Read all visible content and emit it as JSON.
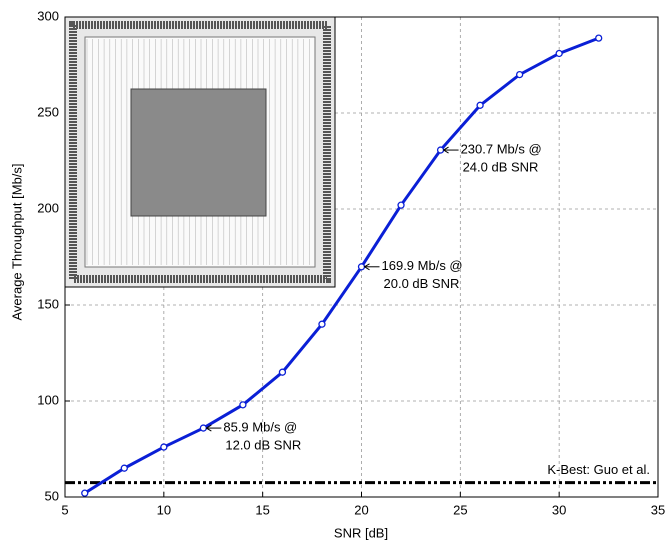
{
  "chart_data": {
    "type": "line",
    "xlabel": "SNR [dB]",
    "ylabel": "Average Throughput [Mb/s]",
    "x": [
      6,
      8,
      10,
      12,
      14,
      16,
      18,
      20,
      22,
      24,
      26,
      28,
      30,
      32
    ],
    "series": [
      {
        "name": null,
        "color": "#0a1fd6",
        "values": [
          52,
          65,
          76,
          85.9,
          98,
          115,
          140,
          169.9,
          202,
          230.7,
          254,
          270,
          281,
          289
        ]
      }
    ],
    "reference_line": {
      "name": "K-Best: Guo et al.",
      "value": 57.5,
      "color": "#000000"
    },
    "annotations": [
      {
        "text": [
          "85.9 Mb/s @",
          "12.0 dB SNR"
        ],
        "x": 12,
        "y": 85.9
      },
      {
        "text": [
          "169.9 Mb/s @",
          "20.0 dB SNR"
        ],
        "x": 20,
        "y": 169.9
      },
      {
        "text": [
          "230.7 Mb/s @",
          "24.0 dB SNR"
        ],
        "x": 24,
        "y": 230.7
      }
    ],
    "xlim": [
      5,
      35
    ],
    "xticks": [
      5,
      10,
      15,
      20,
      25,
      30,
      35
    ],
    "ylim": [
      50,
      300
    ],
    "yticks": [
      50,
      100,
      150,
      200,
      250,
      300
    ],
    "grid": true
  }
}
